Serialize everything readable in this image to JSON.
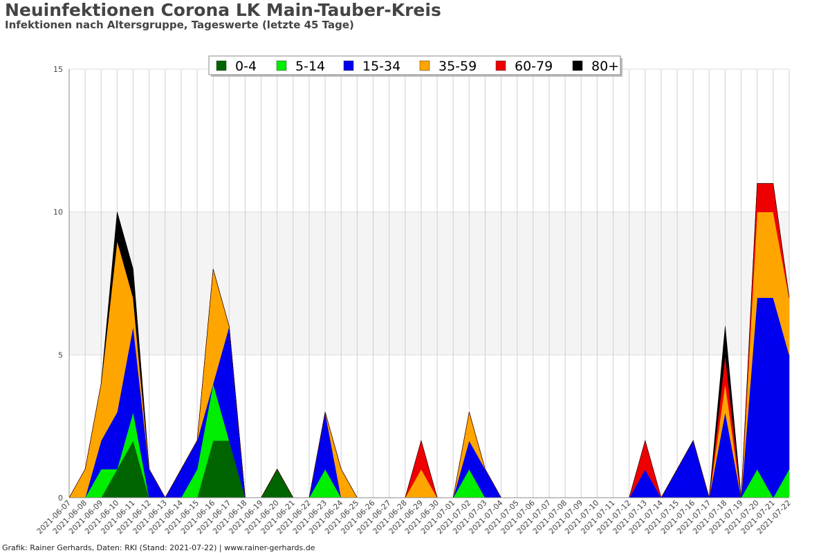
{
  "title": "Neuinfektionen Corona LK Main-Tauber-Kreis",
  "subtitle": "Infektionen nach Altersgruppe, Tageswerte (letzte 45 Tage)",
  "footer": "Grafik: Rainer Gerhards, Daten: RKI (Stand: 2021-07-22) | www.rainer-gerhards.de",
  "chart_data": {
    "type": "area",
    "stacked": true,
    "ylim": [
      0,
      15
    ],
    "yticks": [
      0,
      5,
      10,
      15
    ],
    "grid": true,
    "legend_position": "top-center",
    "x": [
      "2021-06-07",
      "2021-06-08",
      "2021-06-09",
      "2021-06-10",
      "2021-06-11",
      "2021-06-12",
      "2021-06-13",
      "2021-06-14",
      "2021-06-15",
      "2021-06-16",
      "2021-06-17",
      "2021-06-18",
      "2021-06-19",
      "2021-06-20",
      "2021-06-21",
      "2021-06-22",
      "2021-06-23",
      "2021-06-24",
      "2021-06-25",
      "2021-06-26",
      "2021-06-27",
      "2021-06-28",
      "2021-06-29",
      "2021-06-30",
      "2021-07-01",
      "2021-07-02",
      "2021-07-03",
      "2021-07-04",
      "2021-07-05",
      "2021-07-06",
      "2021-07-07",
      "2021-07-08",
      "2021-07-09",
      "2021-07-10",
      "2021-07-11",
      "2021-07-12",
      "2021-07-13",
      "2021-07-14",
      "2021-07-15",
      "2021-07-16",
      "2021-07-17",
      "2021-07-18",
      "2021-07-19",
      "2021-07-20",
      "2021-07-21",
      "2021-07-22"
    ],
    "series": [
      {
        "name": "0-4",
        "color": "#006400",
        "values": [
          0,
          0,
          0,
          1,
          2,
          0,
          0,
          0,
          0,
          2,
          2,
          0,
          0,
          1,
          0,
          0,
          0,
          0,
          0,
          0,
          0,
          0,
          0,
          0,
          0,
          0,
          0,
          0,
          0,
          0,
          0,
          0,
          0,
          0,
          0,
          0,
          0,
          0,
          0,
          0,
          0,
          0,
          0,
          0,
          0,
          0
        ]
      },
      {
        "name": "5-14",
        "color": "#00ee00",
        "values": [
          0,
          0,
          1,
          0,
          1,
          0,
          0,
          0,
          1,
          2,
          0,
          0,
          0,
          0,
          0,
          0,
          1,
          0,
          0,
          0,
          0,
          0,
          0,
          0,
          0,
          1,
          0,
          0,
          0,
          0,
          0,
          0,
          0,
          0,
          0,
          0,
          0,
          0,
          0,
          0,
          0,
          0,
          0,
          1,
          0,
          1
        ]
      },
      {
        "name": "15-34",
        "color": "#0000ee",
        "values": [
          0,
          0,
          1,
          2,
          3,
          1,
          0,
          1,
          1,
          0,
          4,
          0,
          0,
          0,
          0,
          0,
          2,
          0,
          0,
          0,
          0,
          0,
          0,
          0,
          0,
          1,
          1,
          0,
          0,
          0,
          0,
          0,
          0,
          0,
          0,
          0,
          1,
          0,
          1,
          2,
          0,
          3,
          0,
          6,
          7,
          4
        ]
      },
      {
        "name": "35-59",
        "color": "#ffa500",
        "values": [
          0,
          1,
          2,
          6,
          1,
          0,
          0,
          0,
          0,
          4,
          0,
          0,
          0,
          0,
          0,
          0,
          0,
          1,
          0,
          0,
          0,
          0,
          1,
          0,
          0,
          1,
          0,
          0,
          0,
          0,
          0,
          0,
          0,
          0,
          0,
          0,
          0,
          0,
          0,
          0,
          0,
          1,
          0,
          3,
          3,
          2
        ]
      },
      {
        "name": "60-79",
        "color": "#ee0000",
        "values": [
          0,
          0,
          0,
          0,
          0,
          0,
          0,
          0,
          0,
          0,
          0,
          0,
          0,
          0,
          0,
          0,
          0,
          0,
          0,
          0,
          0,
          0,
          1,
          0,
          0,
          0,
          0,
          0,
          0,
          0,
          0,
          0,
          0,
          0,
          0,
          0,
          1,
          0,
          0,
          0,
          0,
          1,
          0,
          1,
          1,
          0
        ]
      },
      {
        "name": "80+",
        "color": "#000000",
        "values": [
          0,
          0,
          0,
          1,
          1,
          0,
          0,
          0,
          0,
          0,
          0,
          0,
          0,
          0,
          0,
          0,
          0,
          0,
          0,
          0,
          0,
          0,
          0,
          0,
          0,
          0,
          0,
          0,
          0,
          0,
          0,
          0,
          0,
          0,
          0,
          0,
          0,
          0,
          0,
          0,
          0,
          1,
          0,
          0,
          0,
          0
        ]
      }
    ]
  }
}
